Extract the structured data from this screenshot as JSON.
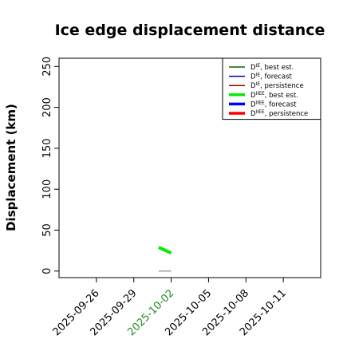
{
  "chart_data": {
    "type": "line",
    "title": "Ice edge displacement distance",
    "xlabel": "",
    "ylabel": "Displacement (km)",
    "x_type": "date",
    "xlim": [
      "2025-09-23",
      "2025-10-14"
    ],
    "ylim": [
      -8,
      260
    ],
    "x_ticks": [
      "2025-09-26",
      "2025-09-29",
      "2025-10-02",
      "2025-10-05",
      "2025-10-08",
      "2025-10-11"
    ],
    "x_tick_colors": [
      "#000000",
      "#000000",
      "#228B22",
      "#000000",
      "#000000",
      "#000000"
    ],
    "y_ticks": [
      0,
      50,
      100,
      150,
      200,
      250
    ],
    "grid": false,
    "legend_position": "top-right",
    "series": [
      {
        "name": "D^IE, best est.",
        "legend_label": "D",
        "legend_sup": "IE",
        "legend_suffix": ", best est.",
        "color": "#006400",
        "width": 1.2,
        "x": [],
        "y": []
      },
      {
        "name": "D^IE, forecast",
        "legend_label": "D",
        "legend_sup": "IE",
        "legend_suffix": ", forecast",
        "color": "#0000cc",
        "width": 1.2,
        "x": [],
        "y": []
      },
      {
        "name": "D^IE, persistence",
        "legend_label": "D",
        "legend_sup": "IE",
        "legend_suffix": ", persistence",
        "color": "#8b0000",
        "width": 1.2,
        "x": [],
        "y": []
      },
      {
        "name": "D^IIEE, best est.",
        "legend_label": "D",
        "legend_sup": "IIEE",
        "legend_suffix": ", best est.",
        "color": "#00ee00",
        "width": 4,
        "x": [
          "2025-10-01",
          "2025-10-02"
        ],
        "y": [
          29,
          22
        ]
      },
      {
        "name": "D^IIEE, forecast",
        "legend_label": "D",
        "legend_sup": "IIEE",
        "legend_suffix": ", forecast",
        "color": "#0000ff",
        "width": 4,
        "x": [],
        "y": []
      },
      {
        "name": "D^IIEE, persistence",
        "legend_label": "D",
        "legend_sup": "IIEE",
        "legend_suffix": ", persistence",
        "color": "#ff0000",
        "width": 4,
        "x": [],
        "y": []
      }
    ],
    "extra_lines": [
      {
        "color": "#808080",
        "width": 1.2,
        "x": [
          "2025-10-01",
          "2025-10-02"
        ],
        "y": [
          0,
          0
        ]
      }
    ]
  }
}
